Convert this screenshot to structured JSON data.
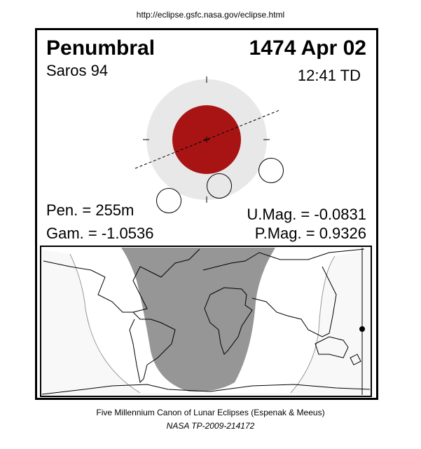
{
  "source_url": "http://eclipse.gsfc.nasa.gov/eclipse.html",
  "eclipse_type": "Penumbral",
  "date": "1474 Apr 02",
  "saros": "Saros  94",
  "time": "12:41 TD",
  "pen_duration": "Pen. = 255m",
  "gamma": "Gam. = -1.0536",
  "umbral_magnitude": "U.Mag. = -0.0831",
  "penumbral_magnitude": "P.Mag. = 0.9326",
  "footer_line1": "Five Millennium Canon of Lunar Eclipses (Espenak & Meeus)",
  "footer_line2": "NASA TP-2009-214172",
  "colors": {
    "umbra": "#a81414",
    "penumbra": "#e8e8e8",
    "visibility_full": "#969696",
    "visibility_partial": "#f8f8f8"
  }
}
